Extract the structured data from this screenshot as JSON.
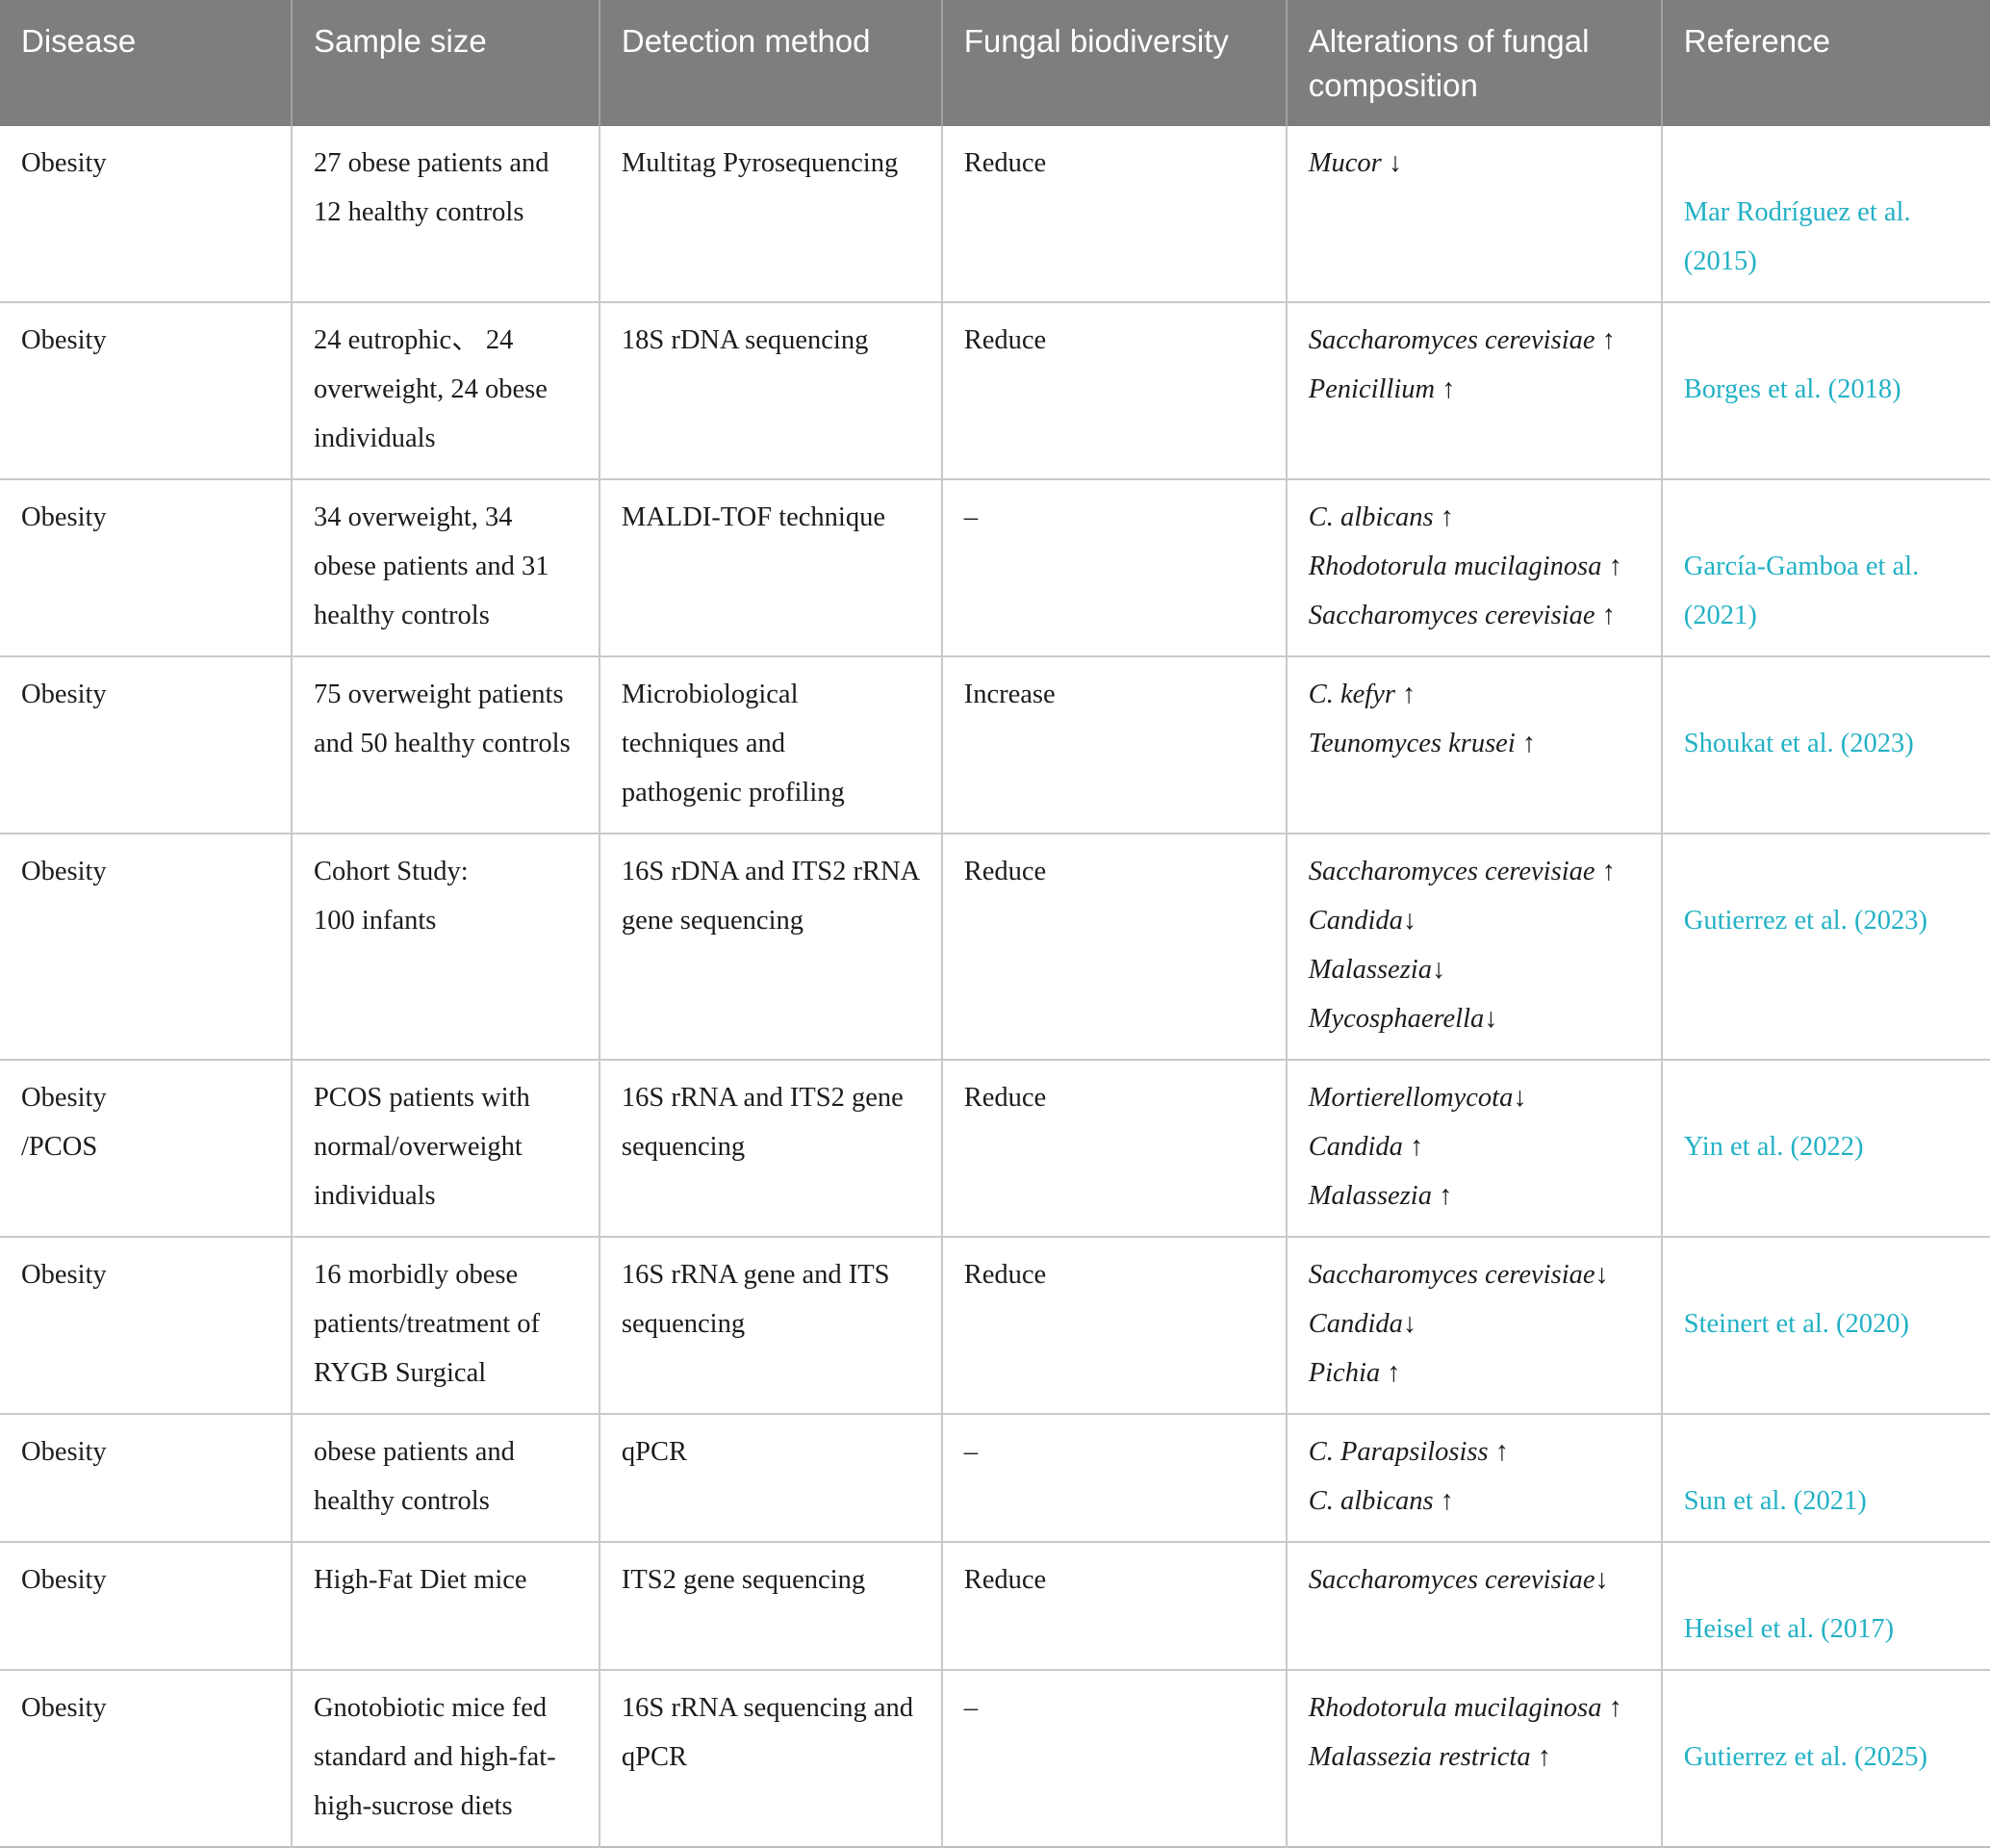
{
  "table": {
    "colors": {
      "header_bg": "#7e7e7e",
      "header_text": "#ffffff",
      "reference_link": "#22b1c5",
      "body_text": "#1c1c1c",
      "border": "#c9c9c9"
    },
    "columns": [
      "Disease",
      "Sample size",
      "Detection method",
      "Fungal biodiversity",
      "Alterations of fungal composition",
      "Reference"
    ],
    "rows": [
      {
        "disease": "Obesity",
        "sample_size": "27 obese patients and\n12 healthy controls",
        "detection_method": "Multitag Pyrosequencing",
        "fungal_biodiversity": "Reduce",
        "alterations": [
          "Mucor ↓"
        ],
        "reference": "Mar Rodríguez et al.\n(2015)"
      },
      {
        "disease": "Obesity",
        "sample_size": "24 eutrophic、 24\noverweight, 24 obese\nindividuals",
        "detection_method": "18S rDNA sequencing",
        "fungal_biodiversity": "Reduce",
        "alterations": [
          "Saccharomyces cerevisiae ↑",
          "Penicillium ↑"
        ],
        "reference": "Borges et al. (2018)"
      },
      {
        "disease": "Obesity",
        "sample_size": "34 overweight, 34\nobese patients and 31\nhealthy controls",
        "detection_method": "MALDI-TOF technique",
        "fungal_biodiversity": "–",
        "alterations": [
          "C. albicans ↑",
          "Rhodotorula mucilaginosa ↑",
          "Saccharomyces cerevisiae ↑"
        ],
        "reference": "García-Gamboa et al.\n(2021)"
      },
      {
        "disease": "Obesity",
        "sample_size": "75 overweight patients\nand 50 healthy controls",
        "detection_method": "Microbiological\ntechniques and\npathogenic profiling",
        "fungal_biodiversity": "Increase",
        "alterations": [
          "C. kefyr ↑",
          "Teunomyces krusei ↑"
        ],
        "reference": "Shoukat et al. (2023)"
      },
      {
        "disease": "Obesity",
        "sample_size": "Cohort Study:\n100 infants",
        "detection_method": "16S rDNA and ITS2 rRNA\ngene sequencing",
        "fungal_biodiversity": "Reduce",
        "alterations": [
          "Saccharomyces cerevisiae ↑",
          "Candida↓",
          "Malassezia↓",
          "Mycosphaerella↓"
        ],
        "reference": "Gutierrez et al. (2023)"
      },
      {
        "disease": "Obesity\n/PCOS",
        "sample_size": "PCOS patients with\nnormal/overweight\nindividuals",
        "detection_method": "16S rRNA and ITS2 gene\nsequencing",
        "fungal_biodiversity": "Reduce",
        "alterations": [
          "Mortierellomycota↓",
          "Candida ↑",
          "Malassezia ↑"
        ],
        "reference": "Yin et al. (2022)"
      },
      {
        "disease": "Obesity",
        "sample_size": "16 morbidly obese\npatients/treatment of\nRYGB Surgical",
        "detection_method": "16S rRNA gene and ITS\nsequencing",
        "fungal_biodiversity": "Reduce",
        "alterations": [
          "Saccharomyces cerevisiae↓",
          "Candida↓",
          "Pichia ↑"
        ],
        "reference": "Steinert et al. (2020)"
      },
      {
        "disease": "Obesity",
        "sample_size": "obese patients and\nhealthy controls",
        "detection_method": "qPCR",
        "fungal_biodiversity": "–",
        "alterations": [
          "C. Parapsilosiss ↑",
          "C. albicans ↑"
        ],
        "reference": "Sun et al. (2021)"
      },
      {
        "disease": "Obesity",
        "sample_size": "High-Fat Diet mice",
        "detection_method": "ITS2 gene sequencing",
        "fungal_biodiversity": "Reduce",
        "alterations": [
          "Saccharomyces cerevisiae↓"
        ],
        "reference": "Heisel et al. (2017)"
      },
      {
        "disease": "Obesity",
        "sample_size": "Gnotobiotic mice fed\nstandard and high-fat-\nhigh-sucrose diets",
        "detection_method": "16S rRNA sequencing and\nqPCR",
        "fungal_biodiversity": "–",
        "alterations": [
          "Rhodotorula mucilaginosa ↑",
          "Malassezia restricta ↑"
        ],
        "reference": "Gutierrez et al. (2025)"
      }
    ]
  }
}
